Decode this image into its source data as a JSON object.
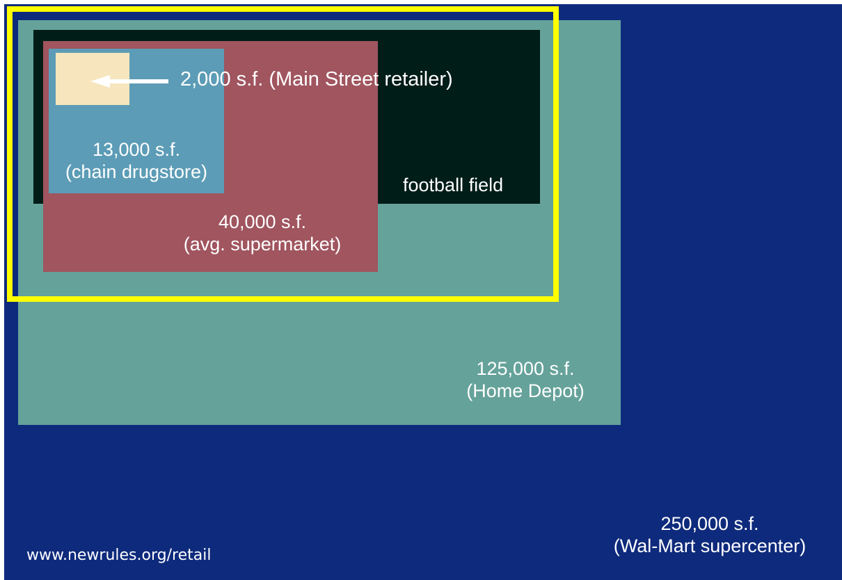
{
  "colors": {
    "walmart": "#0e2a7c",
    "home_depot": "#65a29a",
    "football": "#001d18",
    "supermarket": "#a0555f",
    "drugstore": "#5c9cb6",
    "main_street": "#f7e6bd",
    "highlight": "#ffff00",
    "text": "#ffffff"
  },
  "boxes": {
    "main_street": {
      "line1": "2,000 s.f. (Main Street retailer)"
    },
    "drugstore": {
      "line1": "13,000 s.f.",
      "line2": "(chain drugstore)"
    },
    "football": {
      "line1": "football field"
    },
    "supermarket": {
      "line1": "40,000 s.f.",
      "line2": "(avg. supermarket)"
    },
    "home_depot": {
      "line1": "125,000 s.f.",
      "line2": "(Home Depot)"
    },
    "walmart": {
      "line1": "250,000 s.f.",
      "line2": "(Wal-Mart supercenter)"
    }
  },
  "source_url": "www.newrules.org/retail"
}
